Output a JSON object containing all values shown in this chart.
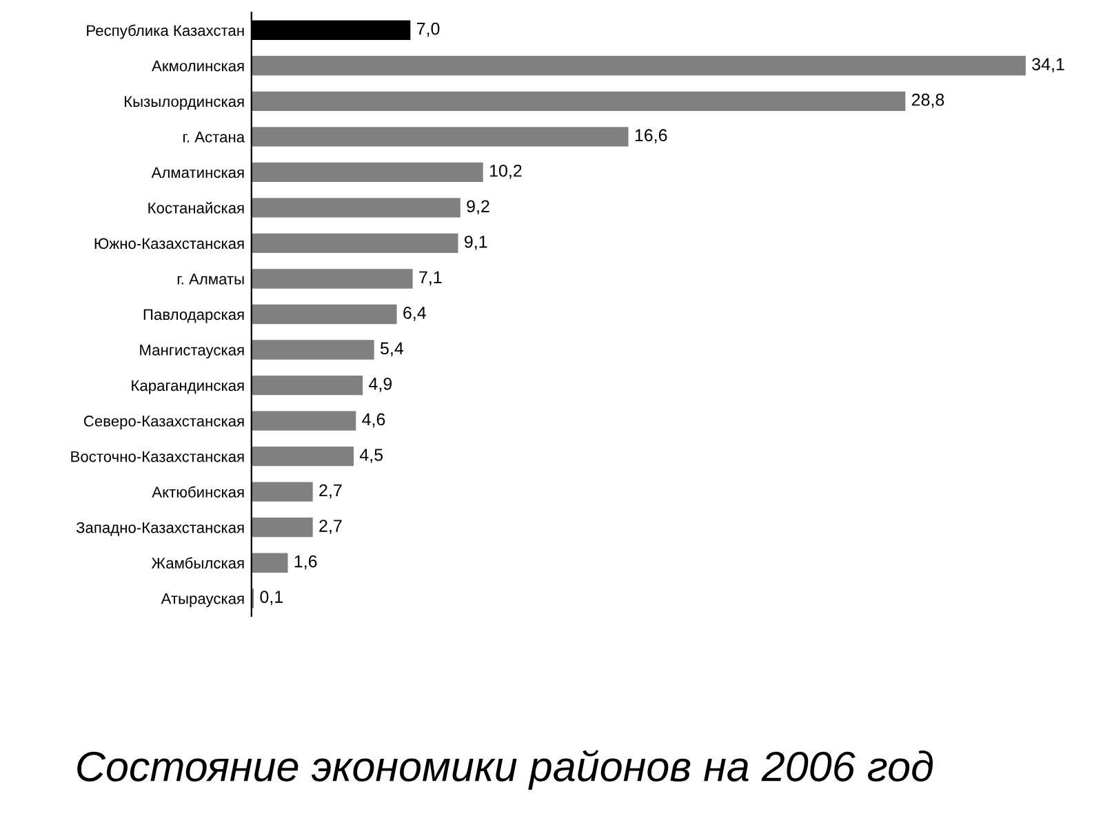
{
  "chart_data": {
    "type": "bar",
    "orientation": "horizontal",
    "title": "Состояние экономики районов на 2006 год",
    "categories": [
      "Республика Казахстан",
      "Акмолинская",
      "Кызылординская",
      "г. Астана",
      "Алматинская",
      "Костанайская",
      "Южно-Казахстанская",
      "г. Алматы",
      "Павлодарская",
      "Мангистауская",
      "Карагандинская",
      "Северо-Казахстанская",
      "Восточно-Казахстанская",
      "Актюбинская",
      "Западно-Казахстанская",
      "Жамбылская",
      "Атырауская"
    ],
    "values": [
      7.0,
      34.1,
      28.8,
      16.6,
      10.2,
      9.2,
      9.1,
      7.1,
      6.4,
      5.4,
      4.9,
      4.6,
      4.5,
      2.7,
      2.7,
      1.6,
      0.1
    ],
    "value_labels": [
      "7,0",
      "34,1",
      "28,8",
      "16,6",
      "10,2",
      "9,2",
      "9,1",
      "7,1",
      "6,4",
      "5,4",
      "4,9",
      "4,6",
      "4,5",
      "2,7",
      "2,7",
      "1,6",
      "0,1"
    ],
    "colors": [
      "#000000",
      "#808080",
      "#808080",
      "#808080",
      "#808080",
      "#808080",
      "#808080",
      "#808080",
      "#808080",
      "#808080",
      "#808080",
      "#808080",
      "#808080",
      "#808080",
      "#808080",
      "#808080",
      "#808080"
    ],
    "grid": false,
    "legend": false
  }
}
